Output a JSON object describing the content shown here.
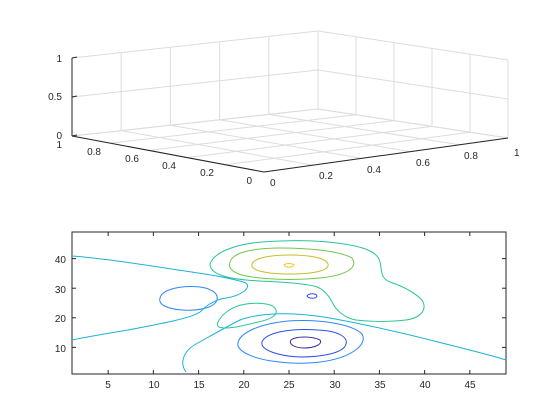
{
  "chart_data": [
    {
      "type": "surface-3d",
      "title": "",
      "xlabel": "",
      "ylabel": "",
      "zlabel": "",
      "xlim": [
        0,
        1
      ],
      "ylim": [
        0,
        1
      ],
      "zlim": [
        0,
        1
      ],
      "x_ticks": [
        "0",
        "0.2",
        "0.4",
        "0.6",
        "0.8",
        "1"
      ],
      "y_ticks": [
        "0",
        "0.2",
        "0.4",
        "0.6",
        "0.8",
        "1"
      ],
      "z_ticks": [
        "0",
        "0.5",
        "1"
      ],
      "grid": true,
      "series": []
    },
    {
      "type": "contour",
      "title": "",
      "xlabel": "",
      "ylabel": "",
      "xlim": [
        1,
        49
      ],
      "ylim": [
        1,
        49
      ],
      "x_ticks": [
        "5",
        "10",
        "15",
        "20",
        "25",
        "30",
        "35",
        "40",
        "45"
      ],
      "y_ticks": [
        "10",
        "20",
        "30",
        "40"
      ],
      "levels": [
        {
          "name": "level-1",
          "color": "#3e26a8"
        },
        {
          "name": "level-2",
          "color": "#2f4fe9"
        },
        {
          "name": "level-3",
          "color": "#2e87f7"
        },
        {
          "name": "level-4",
          "color": "#19b2d6"
        },
        {
          "name": "level-5",
          "color": "#2bc495"
        },
        {
          "name": "level-6",
          "color": "#73c64a"
        },
        {
          "name": "level-7",
          "color": "#c5bd2a"
        },
        {
          "name": "level-8",
          "color": "#f6c330"
        }
      ]
    }
  ]
}
